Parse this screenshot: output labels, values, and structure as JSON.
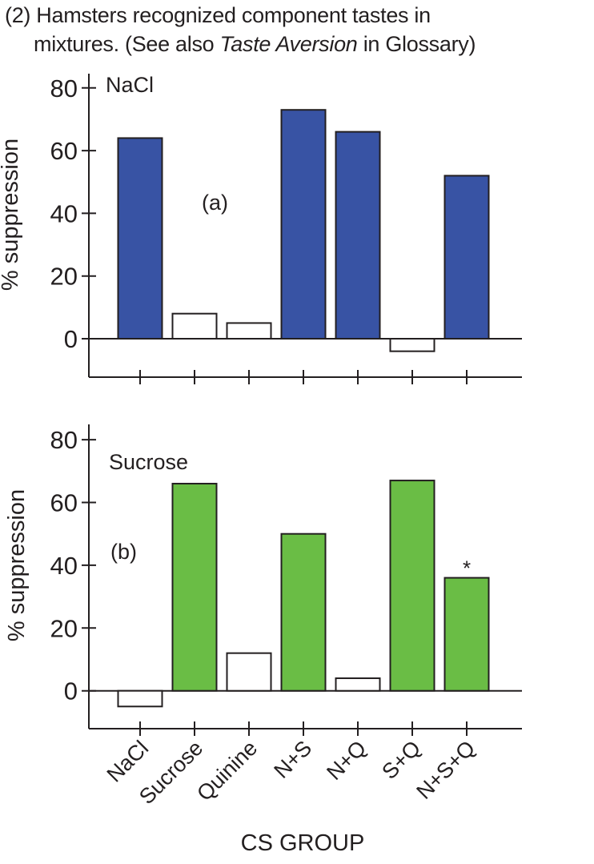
{
  "caption": {
    "line1": "(2) Hamsters recognized component tastes in",
    "line2_pre": "mixtures. (See also ",
    "line2_italic": "Taste Aversion",
    "line2_post": " in Glossary)"
  },
  "colors": {
    "panel_a_fill": "#3853a4",
    "panel_b_fill": "#6abd45",
    "open_fill": "#ffffff",
    "stroke": "#231f20"
  },
  "chart_data": [
    {
      "type": "bar",
      "panel_label": "(a)",
      "title": "NaCl",
      "xlabel": "",
      "ylabel": "% suppression",
      "ylim": [
        -12,
        80
      ],
      "yticks": [
        0,
        20,
        40,
        60,
        80
      ],
      "categories": [
        "NaCl",
        "Sucrose",
        "Quinine",
        "N+S",
        "N+Q",
        "S+Q",
        "N+S+Q"
      ],
      "values": [
        64,
        8,
        5,
        73,
        66,
        -4,
        52
      ],
      "filled": [
        true,
        false,
        false,
        true,
        true,
        false,
        true
      ],
      "annotations": []
    },
    {
      "type": "bar",
      "panel_label": "(b)",
      "title": "Sucrose",
      "xlabel": "CS GROUP",
      "ylabel": "% suppression",
      "ylim": [
        -12,
        80
      ],
      "yticks": [
        0,
        20,
        40,
        60,
        80
      ],
      "categories": [
        "NaCl",
        "Sucrose",
        "Quinine",
        "N+S",
        "N+Q",
        "S+Q",
        "N+S+Q"
      ],
      "values": [
        -5,
        66,
        12,
        50,
        4,
        67,
        36
      ],
      "filled": [
        false,
        true,
        false,
        true,
        false,
        true,
        true
      ],
      "annotations": [
        {
          "category": "N+S+Q",
          "text": "*"
        }
      ]
    }
  ]
}
